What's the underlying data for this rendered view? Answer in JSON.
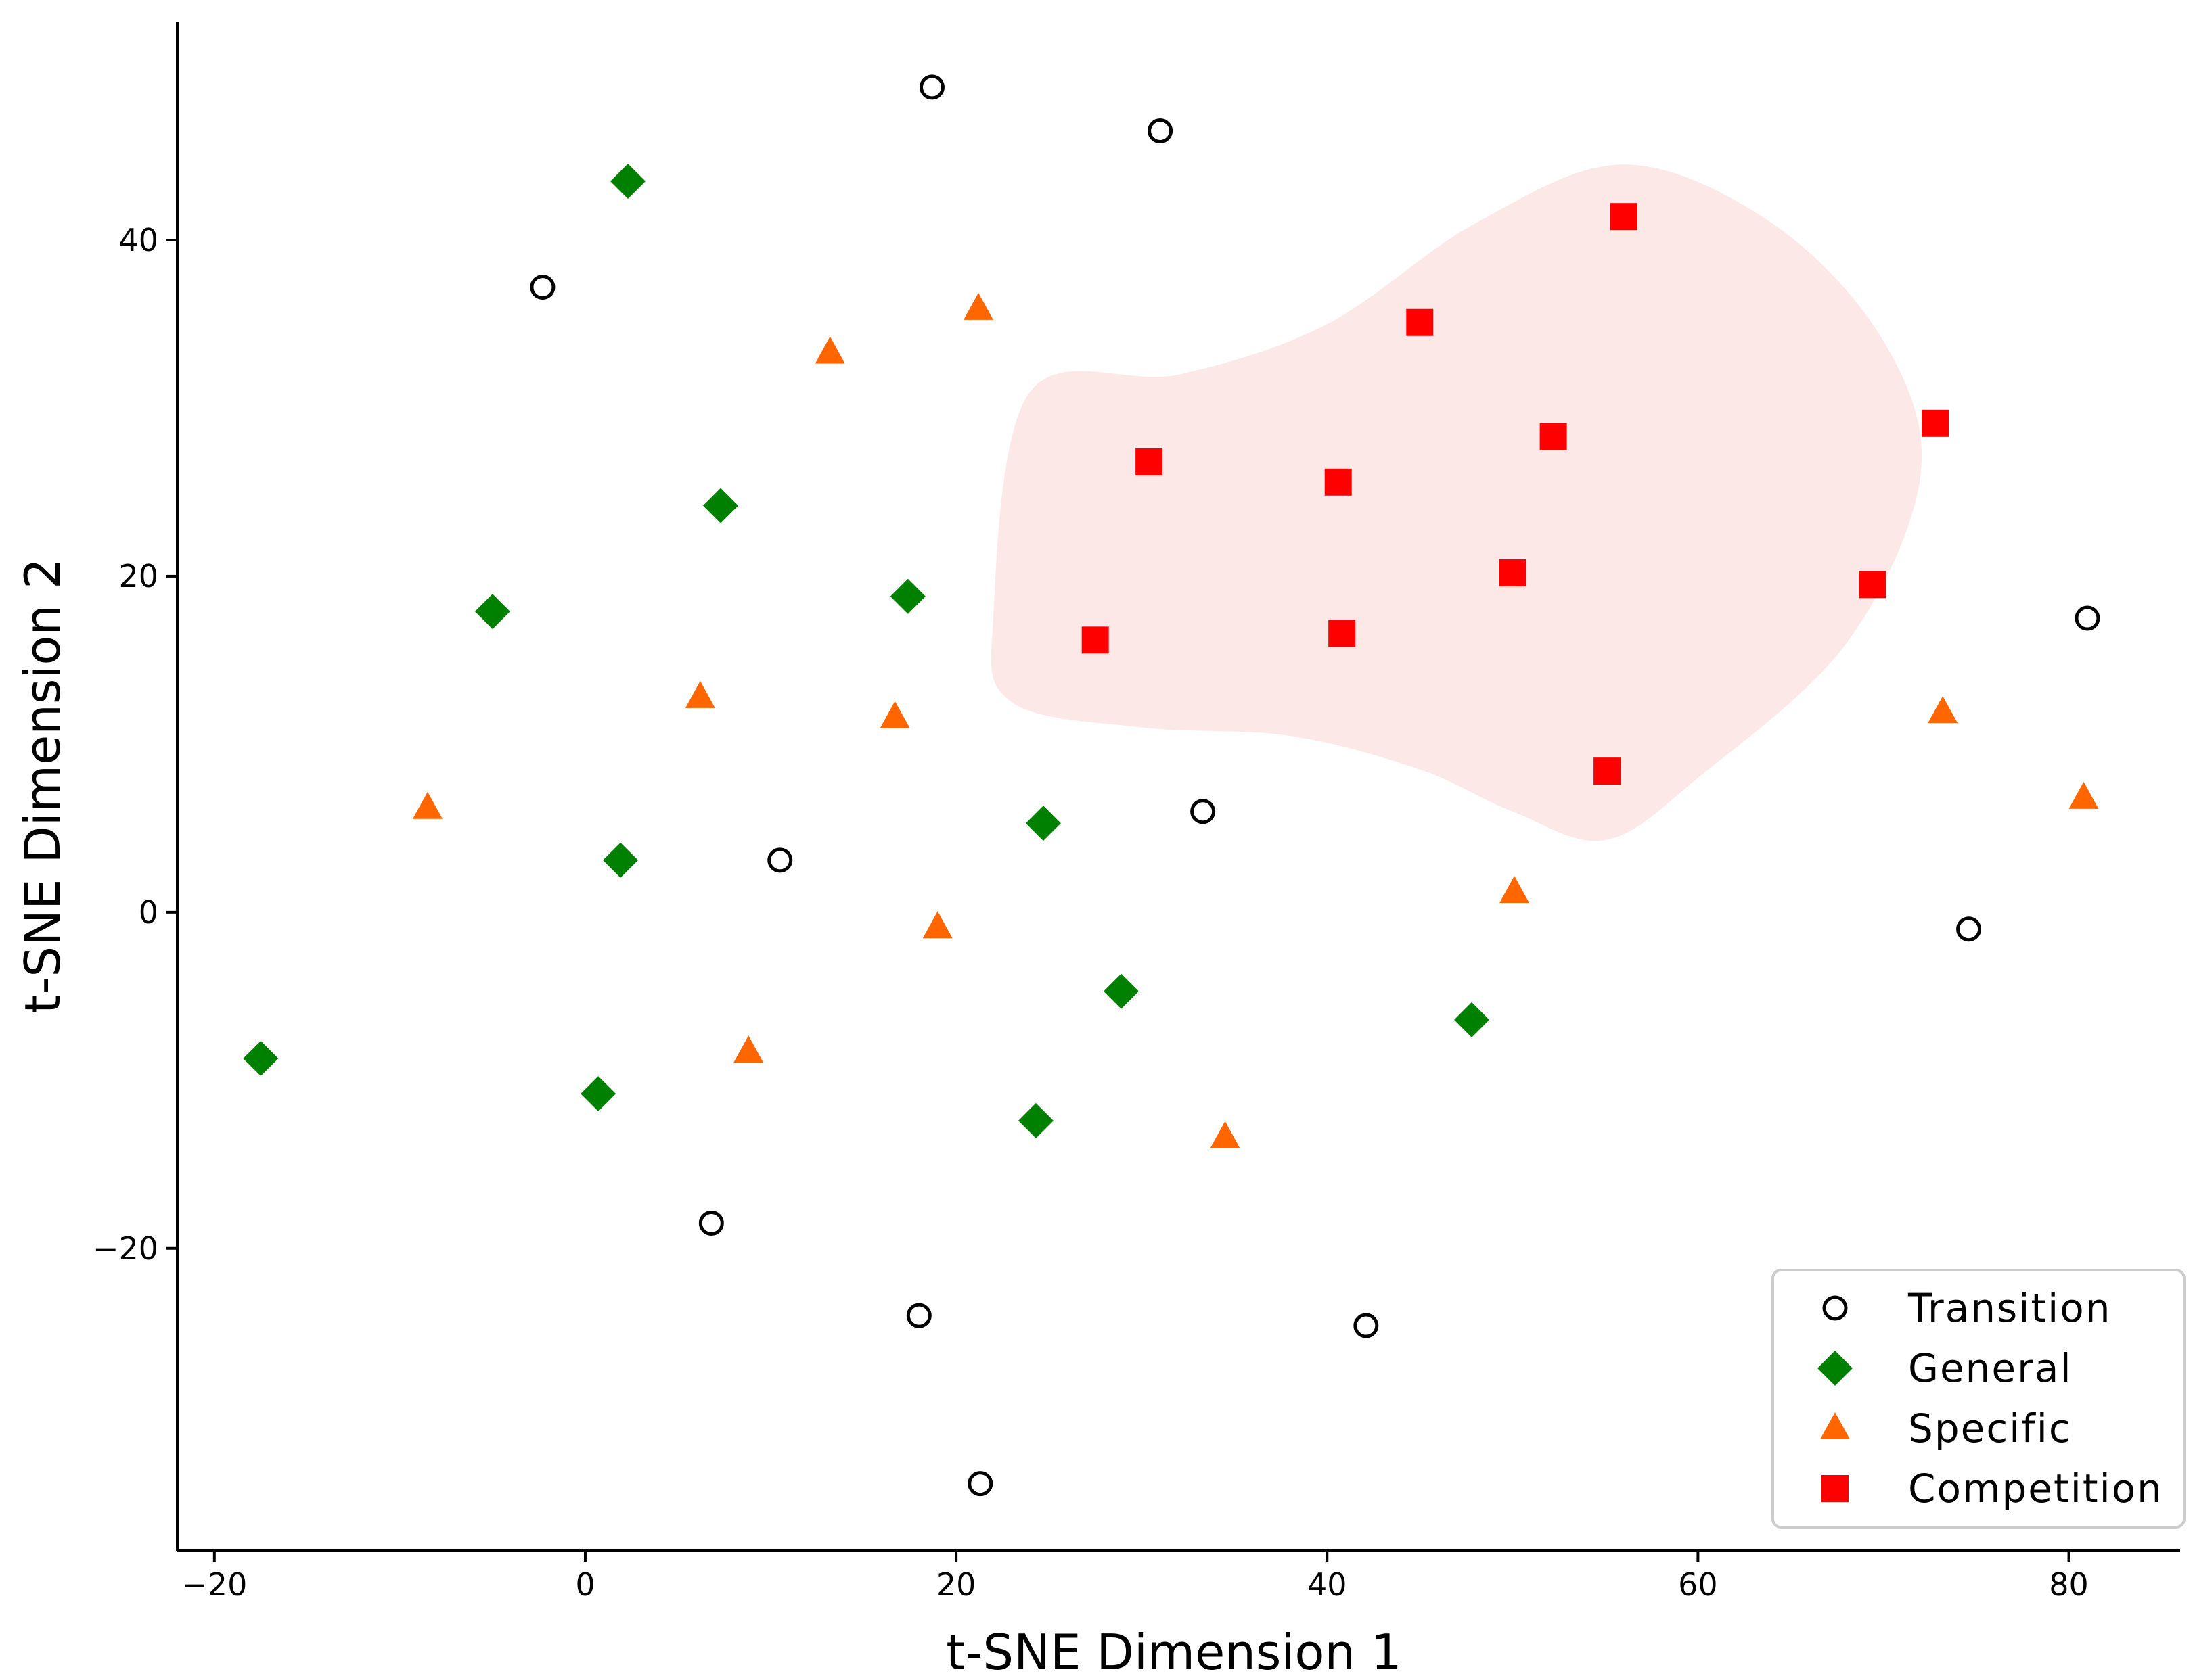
{
  "chart_data": {
    "type": "scatter",
    "title": "",
    "xlabel": "t-SNE Dimension 1",
    "ylabel": "t-SNE Dimension 2",
    "xlim": [
      -22,
      86
    ],
    "ylim": [
      -38,
      53
    ],
    "xticks": [
      -20,
      0,
      20,
      40,
      60,
      80
    ],
    "yticks": [
      -20,
      0,
      20,
      40
    ],
    "xtick_labels": [
      "−20",
      "0",
      "20",
      "40",
      "60",
      "80"
    ],
    "ytick_labels": [
      "−20",
      "0",
      "20",
      "40"
    ],
    "grid": false,
    "legend_position": "bottom-right",
    "region": {
      "label": "",
      "color": "#fde8e8",
      "outline": [
        [
          24,
          31
        ],
        [
          32,
          32
        ],
        [
          40,
          35
        ],
        [
          48,
          41
        ],
        [
          56,
          44.5
        ],
        [
          64,
          41
        ],
        [
          70,
          34
        ],
        [
          72,
          26
        ],
        [
          68,
          16
        ],
        [
          60,
          8
        ],
        [
          55,
          4.3
        ],
        [
          50,
          6
        ],
        [
          45,
          8.5
        ],
        [
          38,
          10.5
        ],
        [
          30,
          11
        ],
        [
          23,
          12.5
        ],
        [
          22,
          17.5
        ]
      ]
    },
    "series": [
      {
        "name": "Transition",
        "marker": "circle",
        "color": "#000000",
        "points": [
          [
            18.7,
            49.1
          ],
          [
            31.0,
            46.5
          ],
          [
            -2.3,
            37.2
          ],
          [
            81.0,
            17.5
          ],
          [
            33.3,
            6.0
          ],
          [
            10.5,
            3.1
          ],
          [
            74.6,
            -1.0
          ],
          [
            6.8,
            -18.5
          ],
          [
            18.0,
            -24.0
          ],
          [
            42.1,
            -24.6
          ],
          [
            21.3,
            -34.0
          ]
        ]
      },
      {
        "name": "General",
        "marker": "diamond",
        "color": "#008000",
        "points": [
          [
            2.3,
            43.5
          ],
          [
            7.3,
            24.2
          ],
          [
            -5.0,
            17.9
          ],
          [
            17.4,
            18.8
          ],
          [
            1.9,
            3.1
          ],
          [
            24.7,
            5.3
          ],
          [
            28.9,
            -4.7
          ],
          [
            47.8,
            -6.4
          ],
          [
            -17.5,
            -8.7
          ],
          [
            0.7,
            -10.8
          ],
          [
            24.3,
            -12.4
          ]
        ]
      },
      {
        "name": "Specific",
        "marker": "triangle",
        "color": "#ff6600",
        "points": [
          [
            21.2,
            35.9
          ],
          [
            13.2,
            33.3
          ],
          [
            6.2,
            12.8
          ],
          [
            16.7,
            11.6
          ],
          [
            -8.5,
            6.2
          ],
          [
            73.2,
            11.9
          ],
          [
            80.8,
            6.8
          ],
          [
            19.0,
            -0.9
          ],
          [
            50.1,
            1.2
          ],
          [
            8.8,
            -8.3
          ],
          [
            34.5,
            -13.4
          ]
        ]
      },
      {
        "name": "Competition",
        "marker": "square",
        "color": "#ff0000",
        "points": [
          [
            56.0,
            41.4
          ],
          [
            45.0,
            35.1
          ],
          [
            30.4,
            26.8
          ],
          [
            40.6,
            25.6
          ],
          [
            52.2,
            28.3
          ],
          [
            72.8,
            29.1
          ],
          [
            50.0,
            20.2
          ],
          [
            69.4,
            19.5
          ],
          [
            27.5,
            16.2
          ],
          [
            40.8,
            16.6
          ],
          [
            55.1,
            8.4
          ]
        ]
      }
    ]
  }
}
